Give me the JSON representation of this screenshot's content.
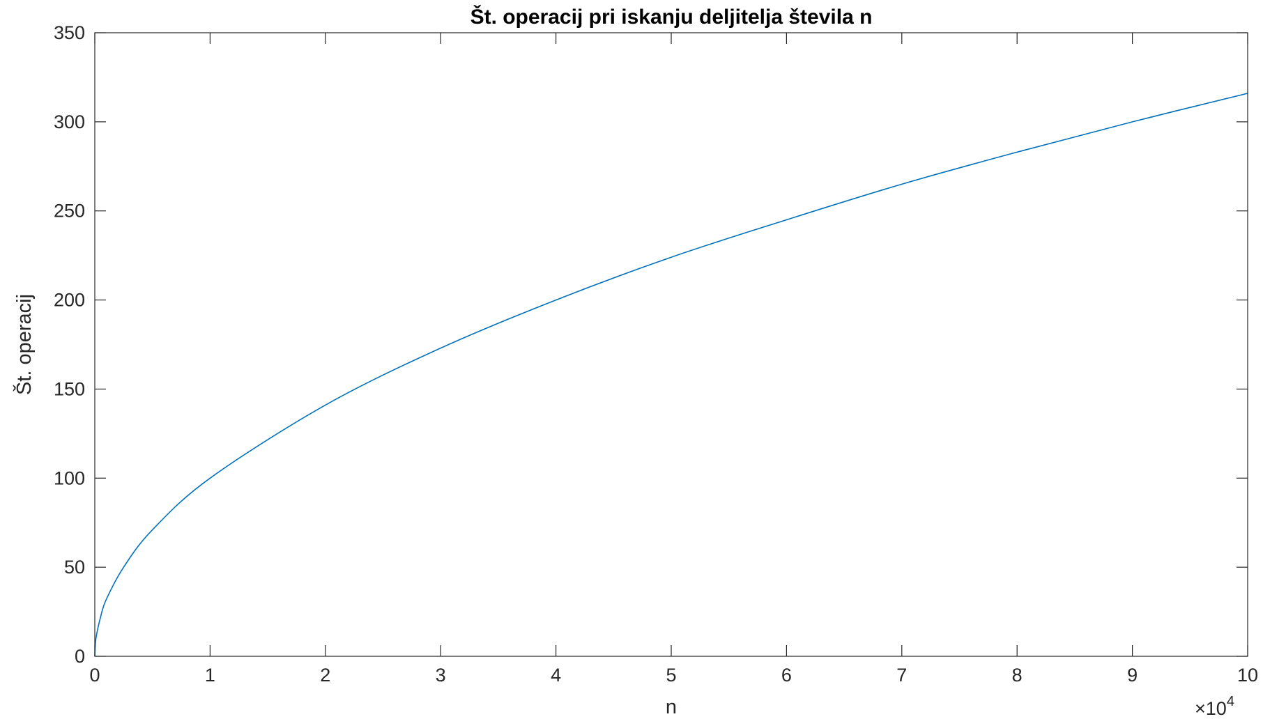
{
  "chart_data": {
    "type": "line",
    "title": "Št. operacij pri iskanju deljitelja števila n",
    "xlabel": "n",
    "ylabel": "Št. operacij",
    "x_exponent_label": "×10",
    "x_exponent_power": "4",
    "x_tick_labels": [
      "0",
      "1",
      "2",
      "3",
      "4",
      "5",
      "6",
      "7",
      "8",
      "9",
      "10"
    ],
    "y_tick_labels": [
      "0",
      "50",
      "100",
      "150",
      "200",
      "250",
      "300",
      "350"
    ],
    "xlim": [
      0,
      100000
    ],
    "ylim": [
      0,
      350
    ],
    "x_ticks": [
      0,
      10000,
      20000,
      30000,
      40000,
      50000,
      60000,
      70000,
      80000,
      90000,
      100000
    ],
    "y_ticks": [
      0,
      50,
      100,
      150,
      200,
      250,
      300,
      350
    ],
    "grid": false,
    "box": true,
    "series": [
      {
        "color": "#0072bd",
        "x": [
          0,
          100,
          500,
          1000,
          2500,
          5000,
          10000,
          20000,
          30000,
          40000,
          50000,
          60000,
          70000,
          80000,
          90000,
          100000
        ],
        "y": [
          0,
          10,
          22,
          32,
          50,
          71,
          100,
          141,
          173,
          200,
          224,
          245,
          265,
          283,
          300,
          316
        ]
      }
    ]
  }
}
